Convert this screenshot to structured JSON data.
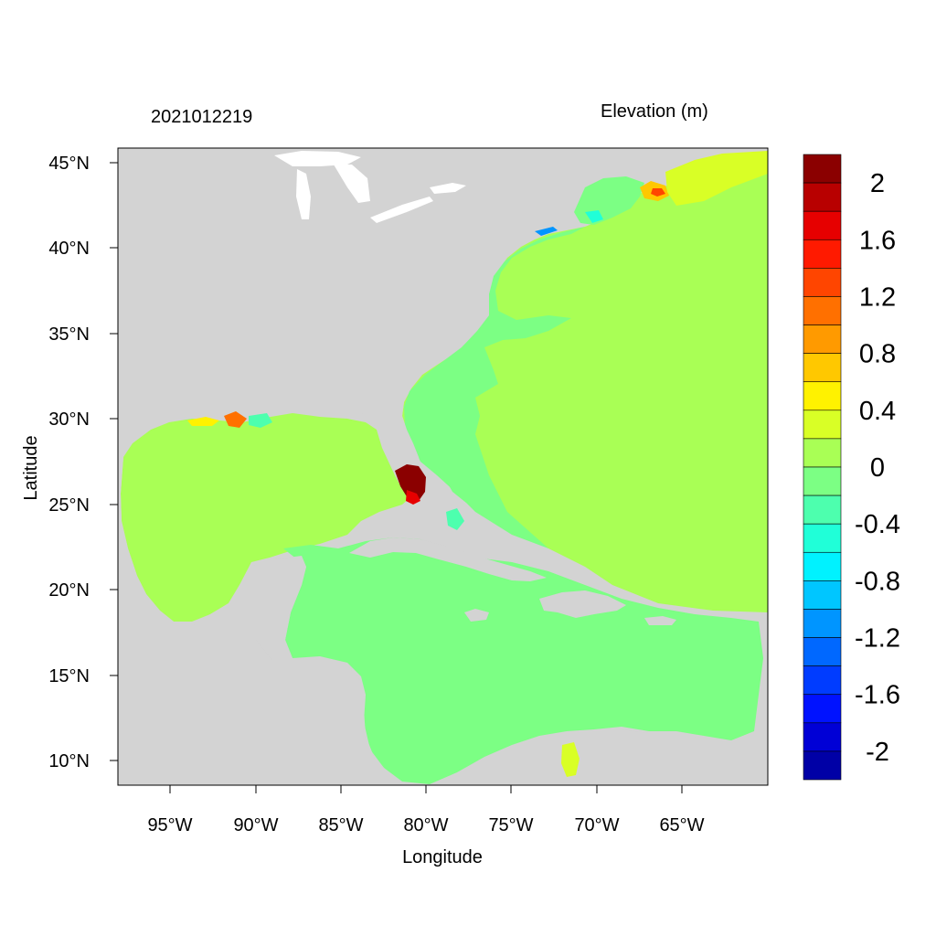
{
  "header": {
    "datetime": "2021012219",
    "variable": "Elevation (m)"
  },
  "axes": {
    "xlabel": "Longitude",
    "ylabel": "Latitude",
    "lon_ticks": [
      "95°W",
      "90°W",
      "85°W",
      "80°W",
      "75°W",
      "70°W",
      "65°W"
    ],
    "lat_ticks": [
      "45°N",
      "40°N",
      "35°N",
      "30°N",
      "25°N",
      "20°N",
      "15°N",
      "10°N"
    ]
  },
  "colorbar": {
    "labels": [
      "2",
      "1.6",
      "1.2",
      "0.8",
      "0.4",
      "0",
      "-0.4",
      "-0.8",
      "-1.2",
      "-1.6",
      "-2"
    ],
    "colors": [
      "#8b0000",
      "#b80000",
      "#e60000",
      "#ff1a00",
      "#ff4500",
      "#ff7000",
      "#ff9a00",
      "#ffc800",
      "#fff200",
      "#d9ff26",
      "#a9ff55",
      "#7cff84",
      "#4dffae",
      "#20ffd8",
      "#00f2ff",
      "#00c6ff",
      "#0095ff",
      "#0068ff",
      "#003cff",
      "#0012ff",
      "#0000d6",
      "#0000a6"
    ]
  },
  "palette": {
    "land": "#d3d3d3",
    "deep_water": "#a9ff55",
    "shelf_water": "#7cff84"
  }
}
